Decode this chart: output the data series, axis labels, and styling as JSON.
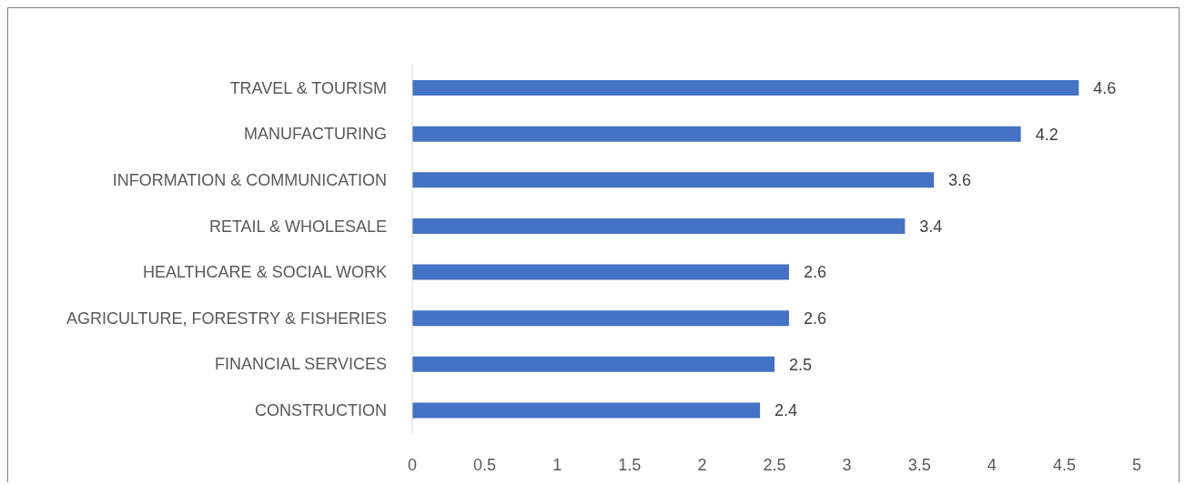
{
  "chart_data": {
    "type": "bar",
    "orientation": "horizontal",
    "categories": [
      "TRAVEL & TOURISM",
      "MANUFACTURING",
      "INFORMATION & COMMUNICATION",
      "RETAIL & WHOLESALE",
      "HEALTHCARE & SOCIAL WORK",
      "AGRICULTURE, FORESTRY & FISHERIES",
      "FINANCIAL SERVICES",
      "CONSTRUCTION"
    ],
    "values": [
      4.6,
      4.2,
      3.6,
      3.4,
      2.6,
      2.6,
      2.5,
      2.4
    ],
    "color": "#4472c4",
    "xlim": [
      0,
      5
    ],
    "xticks": [
      0,
      0.5,
      1,
      1.5,
      2,
      2.5,
      3,
      3.5,
      4,
      4.5,
      5
    ],
    "data_labels": true
  }
}
